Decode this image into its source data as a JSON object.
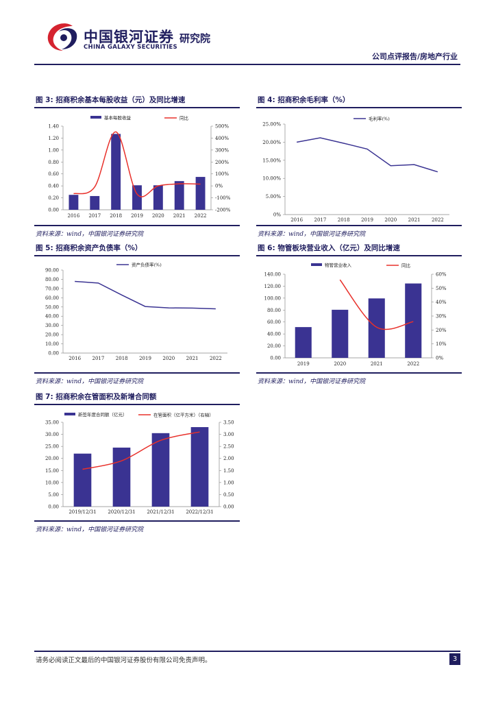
{
  "header": {
    "logo_cn": "中国银河证券",
    "logo_en": "CHINA GALAXY SECURITIES",
    "institute": "研究院",
    "report_type": "公司点评报告/房地产行业"
  },
  "figures": {
    "fig3": {
      "title": "图 3:  招商积余基本每股收益（元）及同比增速",
      "source": "资料来源：wind，中国银河证券研究院"
    },
    "fig4": {
      "title": "图 4:  招商积余毛利率（%）",
      "source": "资料来源：wind，中国银河证券研究院"
    },
    "fig5": {
      "title": "图 5:  招商积余资产负债率（%）",
      "source": "资料来源：wind，中国银河证券研究院"
    },
    "fig6": {
      "title": "图 6:  物管板块营业收入（亿元）及同比增速",
      "source": "资料来源：wind，中国银河证券研究院"
    },
    "fig7": {
      "title": "图 7:  招商积余在管面积及新增合同额",
      "source": "资料来源：wind，中国银河证券研究院"
    }
  },
  "footer": {
    "disclaimer": "请务必阅读正文最后的中国银河证券股份有限公司免责声明。",
    "page": "3"
  },
  "colors": {
    "bar": "#3a3392",
    "line": "#e8302a",
    "brand": "#1f1d5e",
    "logo_red": "#d5232f"
  },
  "chart_data": [
    {
      "id": "fig3",
      "type": "bar+line",
      "categories": [
        "2016",
        "2017",
        "2018",
        "2019",
        "2020",
        "2021",
        "2022"
      ],
      "series": [
        {
          "name": "基本每股收益",
          "type": "bar",
          "axis": "left",
          "values": [
            0.25,
            0.23,
            1.27,
            0.41,
            0.41,
            0.48,
            0.55
          ]
        },
        {
          "name": "同比",
          "type": "line",
          "axis": "right",
          "values": [
            -65,
            -8,
            452,
            -68,
            0,
            17,
            15
          ]
        }
      ],
      "y_left": {
        "min": 0,
        "max": 1.4,
        "ticks": [
          "0.00",
          "0.20",
          "0.40",
          "0.60",
          "0.80",
          "1.00",
          "1.20",
          "1.40"
        ]
      },
      "y_right": {
        "min": -200,
        "max": 500,
        "ticks": [
          "-200%",
          "-100%",
          "0%",
          "100%",
          "200%",
          "300%",
          "400%",
          "500%"
        ]
      }
    },
    {
      "id": "fig4",
      "type": "line",
      "categories": [
        "2016",
        "2017",
        "2018",
        "2019",
        "2020",
        "2021",
        "2022"
      ],
      "series": [
        {
          "name": "毛利率(%)",
          "values": [
            20.0,
            21.2,
            19.7,
            18.1,
            13.5,
            13.8,
            11.8
          ]
        }
      ],
      "y": {
        "min": 0,
        "max": 25,
        "ticks": [
          "0%",
          "5.00%",
          "10.00%",
          "15.00%",
          "20.00%",
          "25.00%"
        ]
      }
    },
    {
      "id": "fig5",
      "type": "line",
      "categories": [
        "2016",
        "2017",
        "2018",
        "2019",
        "2020",
        "2021",
        "2022"
      ],
      "series": [
        {
          "name": "资产负债率(%)",
          "values": [
            77.7,
            76.0,
            63.0,
            50.5,
            49.0,
            48.8,
            48.0
          ]
        }
      ],
      "y": {
        "min": 0,
        "max": 90,
        "ticks": [
          "0.00",
          "10.00",
          "20.00",
          "30.00",
          "40.00",
          "50.00",
          "60.00",
          "70.00",
          "80.00",
          "90.00"
        ]
      }
    },
    {
      "id": "fig6",
      "type": "bar+line",
      "categories": [
        "2019",
        "2020",
        "2021",
        "2022"
      ],
      "series": [
        {
          "name": "物管营业收入",
          "type": "bar",
          "axis": "left",
          "values": [
            51.5,
            80.5,
            99.5,
            124.5
          ]
        },
        {
          "name": "同比",
          "type": "line",
          "axis": "right",
          "values": [
            null,
            56,
            22,
            26
          ]
        }
      ],
      "y_left": {
        "min": 0,
        "max": 140,
        "ticks": [
          "0.00",
          "20.00",
          "40.00",
          "60.00",
          "80.00",
          "100.00",
          "120.00",
          "140.00"
        ]
      },
      "y_right": {
        "min": 0,
        "max": 60,
        "ticks": [
          "0%",
          "10%",
          "20%",
          "30%",
          "40%",
          "50%",
          "60%"
        ]
      }
    },
    {
      "id": "fig7",
      "type": "bar+line",
      "categories": [
        "2019/12/31",
        "2020/12/31",
        "2021/12/31",
        "2022/12/31"
      ],
      "series": [
        {
          "name": "新签年度合同额（亿元）",
          "type": "bar",
          "axis": "left",
          "values": [
            22.0,
            24.5,
            30.5,
            33.0
          ]
        },
        {
          "name": "在管面积（亿平方米）（右轴）",
          "type": "line",
          "axis": "right",
          "values": [
            1.55,
            1.9,
            2.75,
            3.1
          ]
        }
      ],
      "y_left": {
        "min": 0,
        "max": 35,
        "ticks": [
          "0.00",
          "5.00",
          "10.00",
          "15.00",
          "20.00",
          "25.00",
          "30.00",
          "35.00"
        ]
      },
      "y_right": {
        "min": 0,
        "max": 3.5,
        "ticks": [
          "0.00",
          "0.50",
          "1.00",
          "1.50",
          "2.00",
          "2.50",
          "3.00",
          "3.50"
        ]
      }
    }
  ]
}
